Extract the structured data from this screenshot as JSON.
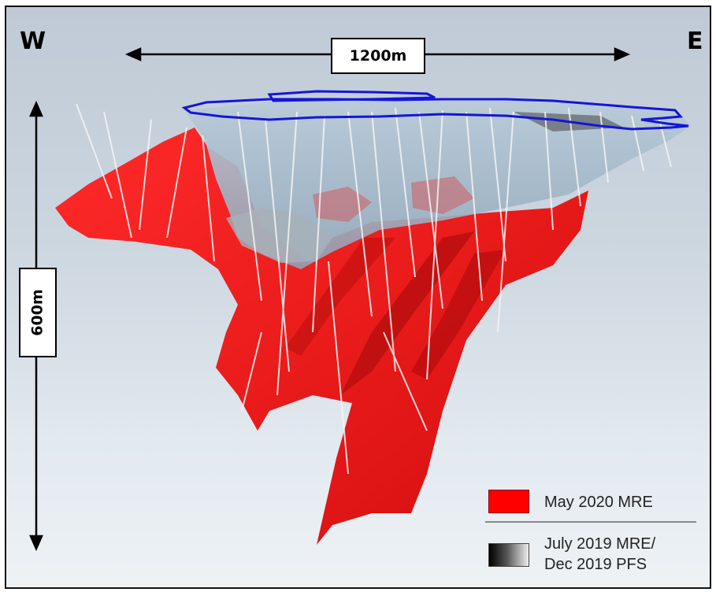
{
  "labels": {
    "west": "W",
    "east": "E",
    "width_scale": "1200m",
    "depth_scale": "600m"
  },
  "legend": {
    "items": [
      {
        "label": "May 2020 MRE",
        "color": "#ff0000"
      },
      {
        "label": "July 2019 MRE/\nDec 2019 PFS",
        "color": "#333333"
      }
    ]
  },
  "colors": {
    "pit_outline": "#1515d8",
    "orebody": "#e81414",
    "pit_shell": "#9fb6c8",
    "drillholes": "#f2f2f2"
  }
}
